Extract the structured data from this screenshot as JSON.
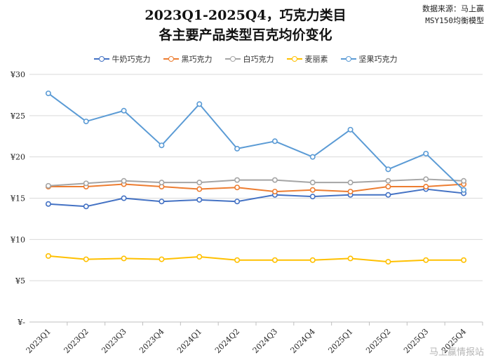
{
  "header": {
    "title_line1": "2023Q1-2025Q4，巧克力类目",
    "title_line2": "各主要产品类型百克均价变化",
    "source_line1": "数据来源：马上赢",
    "source_line2": "MSY150均衡模型"
  },
  "watermark": "马上赢情报站",
  "chart_data": {
    "type": "line",
    "categories": [
      "2023Q1",
      "2023Q2",
      "2023Q3",
      "2023Q4",
      "2024Q1",
      "2024Q2",
      "2024Q3",
      "2024Q4",
      "2025Q1",
      "2025Q2",
      "2025Q3",
      "2025Q4"
    ],
    "y_tick_labels": [
      "¥-",
      "¥5",
      "¥10",
      "¥15",
      "¥20",
      "¥25",
      "¥30"
    ],
    "ylim": [
      0,
      30
    ],
    "grid": true,
    "legend_position": "top",
    "series": [
      {
        "name": "牛奶巧克力",
        "color": "#4472C4",
        "values": [
          14.3,
          14.0,
          15.0,
          14.6,
          14.8,
          14.6,
          15.4,
          15.2,
          15.4,
          15.4,
          16.1,
          15.6
        ]
      },
      {
        "name": "黑巧克力",
        "color": "#ED7D31",
        "values": [
          16.4,
          16.4,
          16.7,
          16.4,
          16.1,
          16.3,
          15.8,
          16.0,
          15.8,
          16.4,
          16.4,
          16.7
        ]
      },
      {
        "name": "白巧克力",
        "color": "#A5A5A5",
        "values": [
          16.5,
          16.8,
          17.1,
          16.9,
          16.9,
          17.2,
          17.2,
          16.9,
          16.9,
          17.1,
          17.3,
          17.1
        ]
      },
      {
        "name": "麦丽素",
        "color": "#FFC000",
        "values": [
          8.0,
          7.6,
          7.7,
          7.6,
          7.9,
          7.5,
          7.5,
          7.5,
          7.7,
          7.3,
          7.5,
          7.5
        ]
      },
      {
        "name": "坚果巧克力",
        "color": "#5B9BD5",
        "values": [
          27.7,
          24.3,
          25.6,
          21.4,
          26.4,
          21.0,
          21.9,
          20.0,
          23.3,
          18.5,
          20.4,
          16.0
        ]
      }
    ]
  }
}
